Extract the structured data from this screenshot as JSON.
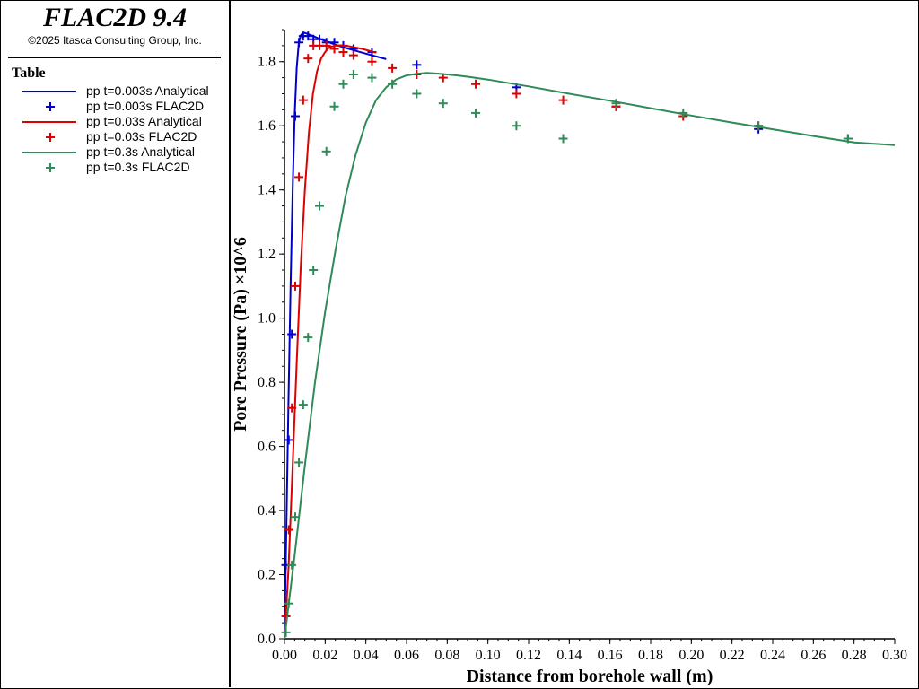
{
  "app": {
    "title": "FLAC2D 9.4",
    "copyright": "©2025 Itasca Consulting Group, Inc."
  },
  "legend": {
    "title": "Table",
    "items": [
      {
        "label": "pp t=0.003s Analytical",
        "kind": "line",
        "color": "#0000cc"
      },
      {
        "label": "pp t=0.003s FLAC2D",
        "kind": "marker",
        "color": "#0000cc"
      },
      {
        "label": "pp t=0.03s Analytical",
        "kind": "line",
        "color": "#dd0000"
      },
      {
        "label": "pp t=0.03s FLAC2D",
        "kind": "marker",
        "color": "#dd0000"
      },
      {
        "label": "pp t=0.3s Analytical",
        "kind": "line",
        "color": "#2e8b57"
      },
      {
        "label": "pp t=0.3s FLAC2D",
        "kind": "marker",
        "color": "#2e8b57"
      }
    ]
  },
  "chart_data": {
    "type": "line",
    "xlabel": "Distance from borehole wall (m)",
    "ylabel": "Pore Pressure (Pa) ×10^6",
    "xlim": [
      0,
      0.3
    ],
    "ylim": [
      0,
      1.9
    ],
    "xticks": [
      0,
      0.02,
      0.04,
      0.06,
      0.08,
      0.1,
      0.12,
      0.14,
      0.16,
      0.18,
      0.2,
      0.22,
      0.24,
      0.26,
      0.28,
      0.3
    ],
    "xtick_labels": [
      "0.00",
      "0.02",
      "0.04",
      "0.06",
      "0.08",
      "0.10",
      "0.12",
      "0.14",
      "0.16",
      "0.18",
      "0.20",
      "0.22",
      "0.24",
      "0.26",
      "0.28",
      "0.30"
    ],
    "yticks": [
      0,
      0.2,
      0.4,
      0.6,
      0.8,
      1.0,
      1.2,
      1.4,
      1.6,
      1.8
    ],
    "ytick_labels": [
      "0.0",
      "0.2",
      "0.4",
      "0.6",
      "0.8",
      "1.0",
      "1.2",
      "1.4",
      "1.6",
      "1.8"
    ],
    "grid": false,
    "series": [
      {
        "name": "pp t=0.003s Analytical",
        "kind": "line",
        "color": "#0000cc",
        "x": [
          0,
          0.001,
          0.002,
          0.003,
          0.004,
          0.005,
          0.006,
          0.007,
          0.008,
          0.009,
          0.01,
          0.012,
          0.014,
          0.017,
          0.02,
          0.025,
          0.03,
          0.04,
          0.05
        ],
        "y": [
          0,
          0.38,
          0.75,
          1.1,
          1.4,
          1.63,
          1.78,
          1.858,
          1.882,
          1.889,
          1.89,
          1.885,
          1.88,
          1.872,
          1.865,
          1.853,
          1.843,
          1.825,
          1.808
        ]
      },
      {
        "name": "pp t=0.003s FLAC2D",
        "kind": "marker",
        "color": "#0000cc",
        "x": [
          0.0007,
          0.0021,
          0.0036,
          0.0053,
          0.0071,
          0.0092,
          0.0116,
          0.0142,
          0.0172,
          0.0206,
          0.0245,
          0.0289,
          0.0339,
          0.043,
          0.065,
          0.114,
          0.163,
          0.233
        ],
        "y": [
          0.23,
          0.62,
          0.95,
          1.63,
          1.86,
          1.88,
          1.88,
          1.87,
          1.87,
          1.86,
          1.86,
          1.85,
          1.84,
          1.83,
          1.79,
          1.72,
          1.66,
          1.59
        ]
      },
      {
        "name": "pp t=0.03s Analytical",
        "kind": "line",
        "color": "#dd0000",
        "x": [
          0,
          0.002,
          0.004,
          0.006,
          0.008,
          0.01,
          0.012,
          0.014,
          0.016,
          0.018,
          0.02,
          0.022,
          0.025,
          0.028,
          0.032,
          0.038,
          0.045
        ],
        "y": [
          0,
          0.22,
          0.54,
          0.86,
          1.16,
          1.4,
          1.58,
          1.7,
          1.77,
          1.81,
          1.83,
          1.845,
          1.85,
          1.851,
          1.848,
          1.84,
          1.828
        ]
      },
      {
        "name": "pp t=0.03s FLAC2D",
        "kind": "marker",
        "color": "#dd0000",
        "x": [
          0.0007,
          0.0021,
          0.0036,
          0.0053,
          0.0071,
          0.0092,
          0.0116,
          0.0142,
          0.0172,
          0.0206,
          0.0245,
          0.0289,
          0.0339,
          0.043,
          0.053,
          0.065,
          0.078,
          0.094,
          0.114,
          0.137,
          0.163,
          0.196,
          0.233,
          0.277
        ],
        "y": [
          0.07,
          0.34,
          0.72,
          1.1,
          1.44,
          1.68,
          1.81,
          1.85,
          1.85,
          1.85,
          1.84,
          1.83,
          1.82,
          1.8,
          1.78,
          1.76,
          1.75,
          1.73,
          1.7,
          1.68,
          1.66,
          1.63,
          1.6,
          1.56
        ]
      },
      {
        "name": "pp t=0.3s Analytical",
        "kind": "line",
        "color": "#2e8b57",
        "x": [
          0,
          0.005,
          0.01,
          0.015,
          0.02,
          0.025,
          0.03,
          0.035,
          0.04,
          0.045,
          0.05,
          0.055,
          0.06,
          0.065,
          0.07,
          0.075,
          0.08,
          0.085,
          0.09,
          0.1,
          0.12,
          0.14,
          0.16,
          0.18,
          0.2,
          0.22,
          0.24,
          0.26,
          0.28,
          0.3
        ],
        "y": [
          0,
          0.26,
          0.54,
          0.8,
          1.02,
          1.21,
          1.38,
          1.51,
          1.61,
          1.68,
          1.72,
          1.745,
          1.757,
          1.762,
          1.765,
          1.763,
          1.76,
          1.757,
          1.753,
          1.744,
          1.723,
          1.7,
          1.678,
          1.655,
          1.632,
          1.61,
          1.589,
          1.568,
          1.548,
          1.54
        ]
      },
      {
        "name": "pp t=0.3s FLAC2D",
        "kind": "marker",
        "color": "#2e8b57",
        "x": [
          0.0007,
          0.0021,
          0.0036,
          0.0053,
          0.0071,
          0.0092,
          0.0116,
          0.0142,
          0.0172,
          0.0206,
          0.0245,
          0.0289,
          0.0339,
          0.043,
          0.053,
          0.065,
          0.078,
          0.094,
          0.114,
          0.137,
          0.163,
          0.196,
          0.233,
          0.277
        ],
        "y": [
          0.02,
          0.11,
          0.23,
          0.38,
          0.55,
          0.73,
          0.94,
          1.15,
          1.35,
          1.52,
          1.66,
          1.73,
          1.76,
          1.75,
          1.73,
          1.7,
          1.67,
          1.64,
          1.6,
          1.56,
          1.67,
          1.64,
          1.6,
          1.56
        ]
      }
    ]
  }
}
